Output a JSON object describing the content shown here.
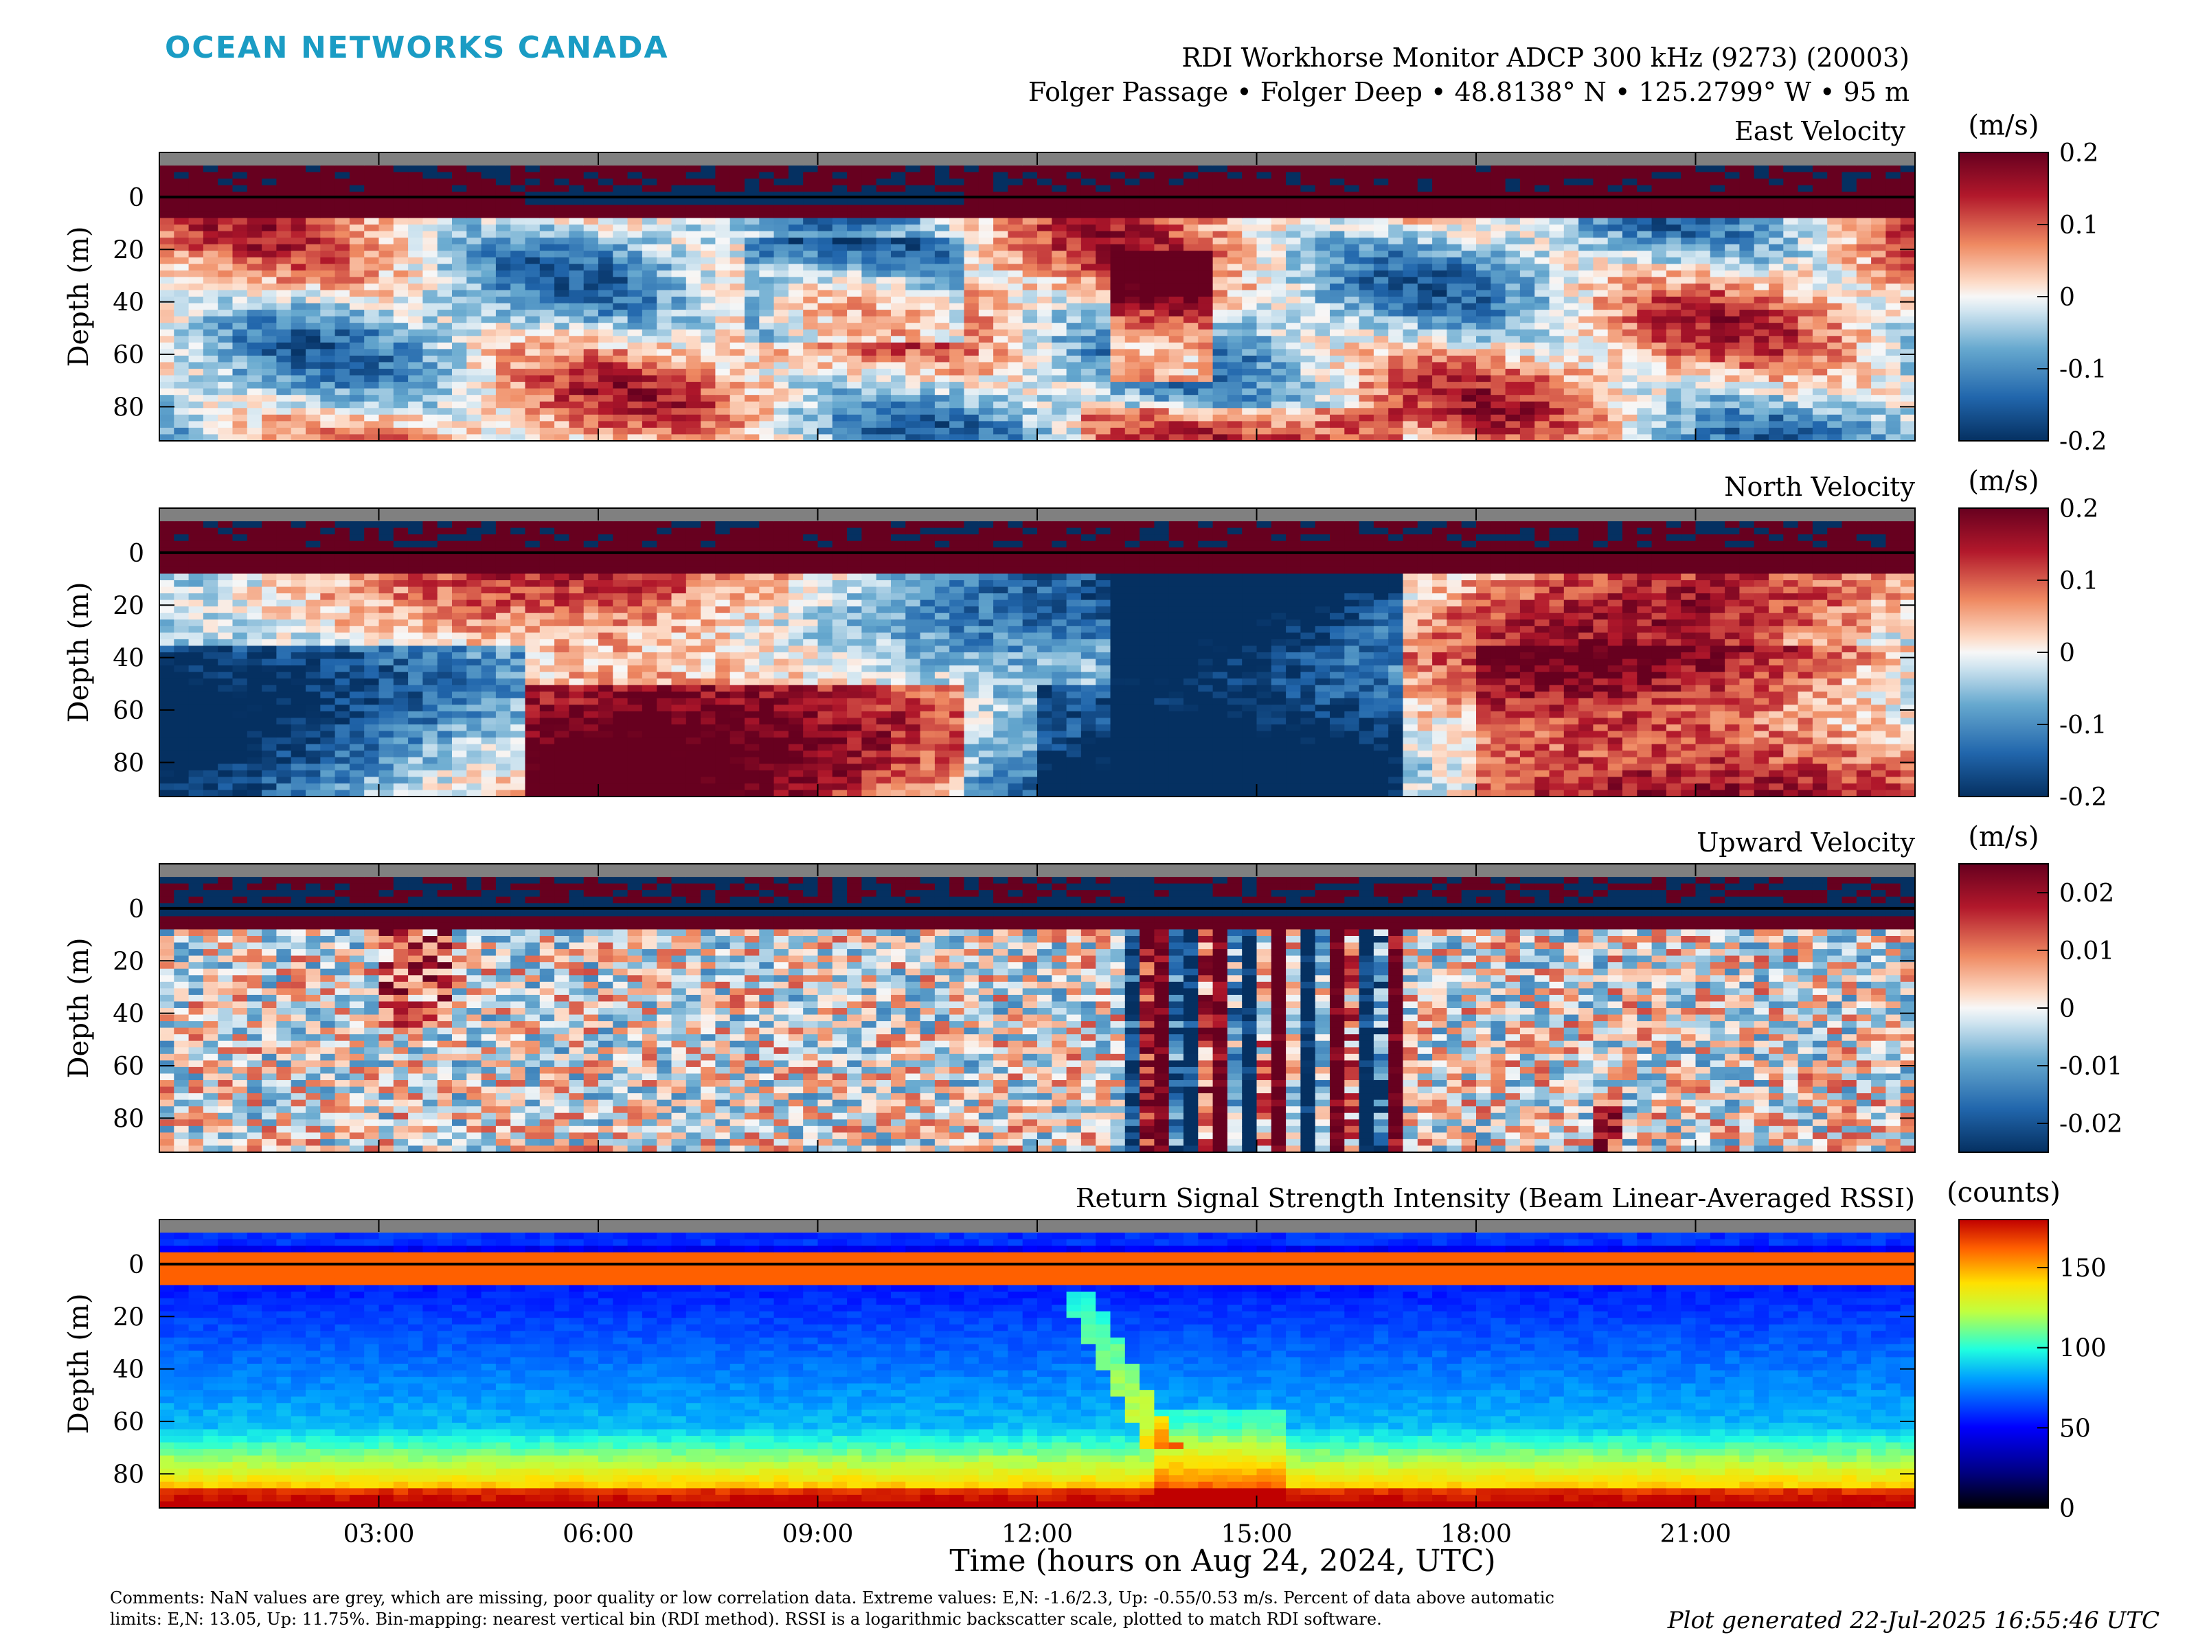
{
  "logo": "OCEAN NETWORKS CANADA",
  "header": {
    "title": "RDI Workhorse Monitor ADCP 300 kHz (9273) (20003)",
    "location": "Folger Passage • Folger Deep • 48.8138° N • 125.2799° W • 95 m"
  },
  "footer": {
    "comments": "Comments: NaN values are grey, which are missing, poor quality or low correlation data. Extreme values: E,N: -1.6/2.3, Up: -0.55/0.53 m/s. Percent of data above automatic limits: E,N: 13.05, Up: 11.75%. Bin-mapping: nearest vertical bin (RDI method). RSSI is a logarithmic backscatter scale, plotted to match RDI software.",
    "generated": "Plot generated 22-Jul-2025 16:55:46 UTC"
  },
  "colors": {
    "nan": "#808080",
    "logo": "#1a9cc4"
  },
  "chart_data": [
    {
      "type": "heatmap",
      "title": "East Velocity",
      "ylabel": "Depth (m)",
      "ylim": [
        -17,
        93
      ],
      "y_reversed": true,
      "yticks": [
        0,
        20,
        40,
        60,
        80
      ],
      "xlim_hours": [
        0,
        24
      ],
      "xtick_labels": [],
      "colorbar": {
        "label": "(m/s)",
        "range": [
          -0.2,
          0.2
        ],
        "ticks": [
          0.2,
          0.1,
          0,
          -0.1,
          -0.2
        ],
        "tick_labels": [
          "0.2",
          "0.1",
          "0",
          "-0.1",
          "-0.2"
        ],
        "colormap": "diverging-red-blue"
      }
    },
    {
      "type": "heatmap",
      "title": "North Velocity",
      "ylabel": "Depth (m)",
      "ylim": [
        -17,
        93
      ],
      "y_reversed": true,
      "yticks": [
        0,
        20,
        40,
        60,
        80
      ],
      "xlim_hours": [
        0,
        24
      ],
      "xtick_labels": [],
      "colorbar": {
        "label": "(m/s)",
        "range": [
          -0.2,
          0.2
        ],
        "ticks": [
          0.2,
          0.1,
          0,
          -0.1,
          -0.2
        ],
        "tick_labels": [
          "0.2",
          "0.1",
          "0",
          "-0.1",
          "-0.2"
        ],
        "colormap": "diverging-red-blue"
      }
    },
    {
      "type": "heatmap",
      "title": "Upward Velocity",
      "ylabel": "Depth (m)",
      "ylim": [
        -17,
        93
      ],
      "y_reversed": true,
      "yticks": [
        0,
        20,
        40,
        60,
        80
      ],
      "xlim_hours": [
        0,
        24
      ],
      "xtick_labels": [],
      "colorbar": {
        "label": "(m/s)",
        "range": [
          -0.025,
          0.025
        ],
        "ticks": [
          0.02,
          0.01,
          0,
          -0.01,
          -0.02
        ],
        "tick_labels": [
          "0.02",
          "0.01",
          "0",
          "-0.01",
          "-0.02"
        ],
        "colormap": "diverging-red-blue"
      }
    },
    {
      "type": "heatmap",
      "title": "Return Signal Strength Intensity (Beam Linear-Averaged RSSI)",
      "ylabel": "Depth (m)",
      "xlabel": "Time (hours on Aug 24, 2024, UTC)",
      "ylim": [
        -17,
        93
      ],
      "y_reversed": true,
      "yticks": [
        0,
        20,
        40,
        60,
        80
      ],
      "xlim_hours": [
        0,
        24
      ],
      "xticks_hours": [
        3,
        6,
        9,
        12,
        15,
        18,
        21
      ],
      "xtick_labels": [
        "03:00",
        "06:00",
        "09:00",
        "12:00",
        "15:00",
        "18:00",
        "21:00"
      ],
      "colorbar": {
        "label": "(counts)",
        "range": [
          0,
          180
        ],
        "ticks": [
          150,
          100,
          50,
          0
        ],
        "tick_labels": [
          "150",
          "100",
          "50",
          "0"
        ],
        "colormap": "jet"
      }
    }
  ]
}
